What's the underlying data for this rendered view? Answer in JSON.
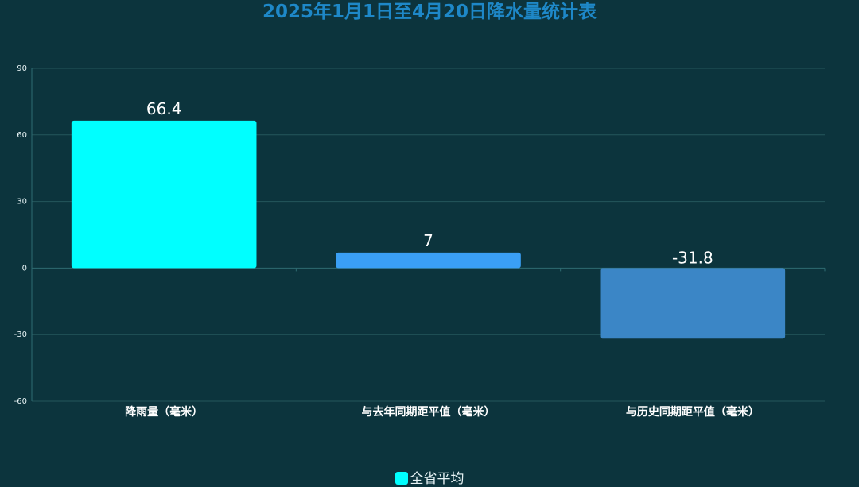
{
  "chart_data": {
    "type": "bar",
    "title": "2025年1月1日至4月20日降水量统计表",
    "categories": [
      "降雨量（毫米）",
      "与去年同期距平值（毫米）",
      "与历史同期距平值（毫米）"
    ],
    "series": [
      {
        "name": "全省平均",
        "values": [
          66.4,
          7,
          -31.8
        ],
        "bar_colors": [
          "#00ffff",
          "#3a9ff5",
          "#3b86c6"
        ]
      }
    ],
    "data_labels": [
      "66.4",
      "7",
      "-31.8"
    ],
    "ylim": [
      -60,
      90
    ],
    "yticks": [
      -60,
      -30,
      0,
      30,
      60,
      90
    ],
    "ytick_labels": [
      "-60",
      "-30",
      "0",
      "30",
      "60",
      "90"
    ],
    "grid": true,
    "legend_position": "bottom-center",
    "legend_color": "#00ffff"
  },
  "colors": {
    "background": "#0c343d",
    "title": "#1e88c8",
    "grid": "#24565c",
    "axis": "#2e6b72",
    "tick_label": "#e8f4f6",
    "category_label": "#ffffff"
  }
}
